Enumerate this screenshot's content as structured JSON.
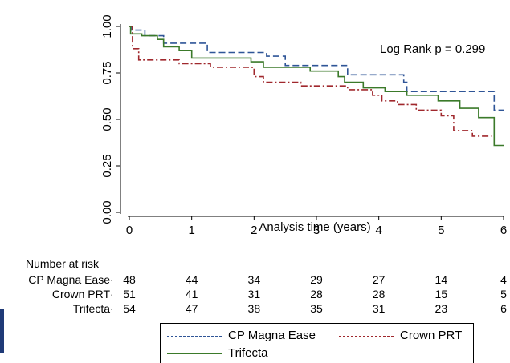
{
  "chart_data": {
    "type": "line",
    "subtype": "kaplan-meier",
    "xlabel": "Analysis time (years)",
    "ylabel": "",
    "xlim": [
      0,
      6
    ],
    "ylim": [
      0,
      1
    ],
    "x_ticks": [
      "0",
      "1",
      "2",
      "3",
      "4",
      "5",
      "6"
    ],
    "y_ticks": [
      "0.00",
      "0.25",
      "0.50",
      "0.75",
      "1.00"
    ],
    "annotation": "Log Rank p = 0.299",
    "grid": false,
    "series": [
      {
        "name": "CP Magna Ease",
        "color": "#2f5597",
        "style": "dashed",
        "x": [
          0,
          0.04,
          0.04,
          0.25,
          0.25,
          0.55,
          0.55,
          1.25,
          1.25,
          2.2,
          2.2,
          2.5,
          2.5,
          3.5,
          3.5,
          4.4,
          4.4,
          4.45,
          4.45,
          5.85,
          5.85,
          6.0
        ],
        "y": [
          1.0,
          1.0,
          0.98,
          0.98,
          0.95,
          0.95,
          0.91,
          0.91,
          0.86,
          0.86,
          0.84,
          0.84,
          0.79,
          0.79,
          0.74,
          0.74,
          0.7,
          0.7,
          0.65,
          0.65,
          0.55,
          0.55
        ]
      },
      {
        "name": "Crown PRT",
        "color": "#a0282d",
        "style": "dashdot",
        "x": [
          0,
          0.05,
          0.05,
          0.15,
          0.15,
          0.8,
          0.8,
          1.3,
          1.3,
          2.0,
          2.0,
          2.15,
          2.15,
          2.75,
          2.75,
          3.5,
          3.5,
          3.9,
          3.9,
          4.05,
          4.05,
          4.3,
          4.3,
          4.6,
          4.6,
          5.0,
          5.0,
          5.2,
          5.2,
          5.5,
          5.5,
          5.8
        ],
        "y": [
          1.0,
          1.0,
          0.88,
          0.88,
          0.82,
          0.82,
          0.8,
          0.8,
          0.78,
          0.78,
          0.73,
          0.73,
          0.7,
          0.7,
          0.68,
          0.68,
          0.66,
          0.66,
          0.63,
          0.63,
          0.6,
          0.6,
          0.58,
          0.58,
          0.55,
          0.55,
          0.52,
          0.52,
          0.44,
          0.44,
          0.41,
          0.41
        ]
      },
      {
        "name": "Trifecta",
        "color": "#3b7a2a",
        "style": "solid",
        "x": [
          0,
          0.02,
          0.02,
          0.2,
          0.2,
          0.45,
          0.45,
          0.55,
          0.55,
          0.8,
          0.8,
          1.0,
          1.0,
          1.95,
          1.95,
          2.15,
          2.15,
          2.9,
          2.9,
          3.35,
          3.35,
          3.45,
          3.45,
          3.75,
          3.75,
          4.1,
          4.1,
          4.45,
          4.45,
          4.95,
          4.95,
          5.3,
          5.3,
          5.6,
          5.6,
          5.85,
          5.85,
          6.0
        ],
        "y": [
          1.0,
          1.0,
          0.96,
          0.96,
          0.95,
          0.95,
          0.93,
          0.93,
          0.89,
          0.89,
          0.87,
          0.87,
          0.83,
          0.83,
          0.81,
          0.81,
          0.78,
          0.78,
          0.76,
          0.76,
          0.73,
          0.73,
          0.7,
          0.7,
          0.67,
          0.67,
          0.65,
          0.65,
          0.63,
          0.63,
          0.6,
          0.6,
          0.56,
          0.56,
          0.51,
          0.51,
          0.36,
          0.36
        ]
      }
    ]
  },
  "risk_table": {
    "title": "Number at risk",
    "rows": [
      {
        "label": "CP Magna Ease",
        "values": [
          "48",
          "44",
          "34",
          "29",
          "27",
          "14",
          "4"
        ]
      },
      {
        "label": "Crown PRT",
        "values": [
          "51",
          "41",
          "31",
          "28",
          "28",
          "15",
          "5"
        ]
      },
      {
        "label": "Trifecta",
        "values": [
          "54",
          "47",
          "38",
          "35",
          "31",
          "23",
          "6"
        ]
      }
    ]
  },
  "legend": {
    "items": [
      "CP Magna Ease",
      "Crown PRT",
      "Trifecta"
    ]
  }
}
